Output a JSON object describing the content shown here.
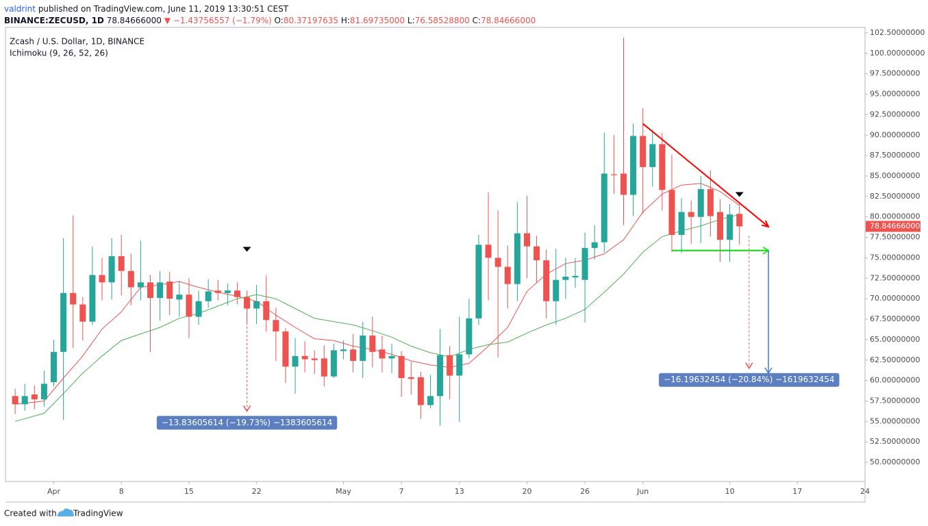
{
  "header": {
    "author": "valdrint",
    "published": "published on TradingView.com, June 11, 2019 13:30:51 CEST",
    "symbol": "BINANCE:ZECUSD, 1D",
    "price": "78.84666000",
    "arrow": "▼",
    "change": "−1.43756557 (−1.79%)",
    "ohlc": [
      {
        "label": "O:",
        "value": "80.37197635"
      },
      {
        "label": "H:",
        "value": "81.69735000"
      },
      {
        "label": "L:",
        "value": "76.58528800"
      },
      {
        "label": "C:",
        "value": "78.84666000"
      }
    ]
  },
  "legend": {
    "title": "Zcash / U.S. Dollar, 1D, BINANCE",
    "indicator": "Ichimoku (9, 26, 52, 26)"
  },
  "footer": {
    "created": "Created with",
    "brand": "TradingView"
  },
  "chart_data": {
    "type": "candlestick",
    "up_color": "#26a69a",
    "down_color": "#ef5350",
    "grid": false,
    "xlim": [
      "03-27",
      "06-24"
    ],
    "ylim": [
      47.66,
      103.17
    ],
    "xticks": [
      {
        "value": "04-01",
        "label": "Apr"
      },
      {
        "value": "04-08",
        "label": "8"
      },
      {
        "value": "04-15",
        "label": "15"
      },
      {
        "value": "04-22",
        "label": "22"
      },
      {
        "value": "05-01",
        "label": "May"
      },
      {
        "value": "05-07",
        "label": "7"
      },
      {
        "value": "05-13",
        "label": "13"
      },
      {
        "value": "05-20",
        "label": "20"
      },
      {
        "value": "05-26",
        "label": "26"
      },
      {
        "value": "06-01",
        "label": "Jun"
      },
      {
        "value": "06-10",
        "label": "10"
      },
      {
        "value": "06-17",
        "label": "17"
      },
      {
        "value": "06-24",
        "label": "24"
      }
    ],
    "yticks": [
      {
        "value": 50,
        "label": "50.00000000"
      },
      {
        "value": 52.5,
        "label": "52.50000000"
      },
      {
        "value": 55,
        "label": "55.00000000"
      },
      {
        "value": 57.5,
        "label": "57.50000000"
      },
      {
        "value": 60,
        "label": "60.00000000"
      },
      {
        "value": 62.5,
        "label": "62.50000000"
      },
      {
        "value": 65,
        "label": "65.00000000"
      },
      {
        "value": 67.5,
        "label": "67.50000000"
      },
      {
        "value": 70,
        "label": "70.00000000"
      },
      {
        "value": 72.5,
        "label": "72.50000000"
      },
      {
        "value": 75,
        "label": "75.00000000"
      },
      {
        "value": 77.5,
        "label": "77.50000000"
      },
      {
        "value": 80,
        "label": "80.00000000"
      },
      {
        "value": 82.5,
        "label": "82.50000000"
      },
      {
        "value": 85,
        "label": "85.00000000"
      },
      {
        "value": 87.5,
        "label": "87.50000000"
      },
      {
        "value": 90,
        "label": "90.00000000"
      },
      {
        "value": 92.5,
        "label": "92.50000000"
      },
      {
        "value": 95,
        "label": "95.00000000"
      },
      {
        "value": 97.5,
        "label": "97.50000000"
      },
      {
        "value": 100,
        "label": "100.00000000"
      },
      {
        "value": 102.5,
        "label": "102.50000000"
      }
    ],
    "candles": {
      "x": [
        "03-28",
        "03-29",
        "03-30",
        "03-31",
        "04-01",
        "04-02",
        "04-03",
        "04-04",
        "04-05",
        "04-06",
        "04-07",
        "04-08",
        "04-09",
        "04-10",
        "04-11",
        "04-12",
        "04-13",
        "04-14",
        "04-15",
        "04-16",
        "04-17",
        "04-18",
        "04-19",
        "04-20",
        "04-21",
        "04-22",
        "04-23",
        "04-24",
        "04-25",
        "04-26",
        "04-27",
        "04-28",
        "04-29",
        "04-30",
        "05-01",
        "05-02",
        "05-03",
        "05-04",
        "05-05",
        "05-06",
        "05-07",
        "05-08",
        "05-09",
        "05-10",
        "05-11",
        "05-12",
        "05-13",
        "05-14",
        "05-15",
        "05-16",
        "05-17",
        "05-18",
        "05-19",
        "05-20",
        "05-21",
        "05-22",
        "05-23",
        "05-24",
        "05-25",
        "05-26",
        "05-27",
        "05-28",
        "05-29",
        "05-30",
        "05-31",
        "06-01",
        "06-02",
        "06-03",
        "06-04",
        "06-05",
        "06-06",
        "06-07",
        "06-08",
        "06-09",
        "06-10",
        "06-11"
      ],
      "open": [
        58.1,
        57.1,
        58.3,
        57.7,
        59.8,
        63.5,
        70.7,
        69.3,
        67.2,
        72.9,
        72.0,
        75.2,
        73.4,
        71.4,
        72.0,
        70.1,
        72.1,
        69.9,
        70.5,
        67.8,
        69.7,
        71.0,
        70.7,
        71.0,
        70.2,
        68.8,
        69.7,
        67.4,
        66.0,
        61.7,
        63.0,
        62.7,
        62.7,
        60.5,
        63.6,
        63.8,
        62.4,
        65.5,
        63.8,
        62.7,
        63.0,
        60.4,
        60.4,
        57.0,
        58.1,
        63.1,
        60.6,
        63.2,
        67.6,
        76.6,
        75.0,
        73.9,
        71.8,
        78.0,
        76.4,
        74.7,
        69.7,
        72.3,
        72.6,
        72.3,
        76.2,
        76.9,
        85.2,
        85.3,
        82.7,
        89.9,
        86.1,
        88.9,
        83.3,
        77.8,
        80.6,
        80.0,
        83.4,
        80.6,
        77.2,
        80.37197635
      ],
      "high": [
        59.0,
        59.6,
        59.4,
        61.2,
        65.0,
        77.4,
        80.2,
        70.2,
        76.4,
        75.0,
        77.4,
        77.8,
        75.5,
        77.1,
        72.9,
        73.4,
        73.3,
        72.2,
        72.5,
        71.0,
        72.4,
        72.3,
        71.9,
        72.0,
        71.0,
        71.7,
        72.8,
        68.9,
        66.4,
        65.2,
        64.8,
        63.7,
        64.3,
        64.5,
        64.9,
        65.7,
        67.2,
        67.8,
        65.5,
        64.5,
        63.6,
        62.3,
        61.1,
        60.7,
        66.3,
        64.2,
        67.8,
        70.0,
        77.8,
        83.0,
        80.8,
        76.5,
        81.8,
        82.6,
        77.7,
        76.0,
        76.1,
        75.0,
        75.0,
        78.1,
        79.0,
        90.3,
        90.0,
        101.9,
        91.4,
        93.3,
        90.7,
        90.3,
        87.6,
        82.3,
        82.0,
        85.0,
        85.7,
        82.2,
        81.6,
        81.69735
      ],
      "low": [
        55.9,
        56.3,
        56.5,
        56.8,
        59.3,
        55.2,
        64.0,
        64.9,
        66.8,
        69.8,
        69.9,
        70.4,
        69.2,
        69.8,
        63.5,
        67.3,
        68.0,
        67.8,
        65.2,
        66.8,
        68.9,
        69.8,
        69.2,
        69.3,
        66.9,
        66.9,
        66.0,
        62.4,
        59.7,
        58.4,
        61.0,
        60.8,
        59.3,
        60.3,
        62.6,
        61.0,
        60.3,
        61.6,
        61.0,
        60.9,
        58.0,
        58.3,
        55.3,
        56.6,
        54.5,
        57.7,
        54.9,
        62.7,
        66.8,
        69.8,
        62.8,
        68.8,
        69.7,
        72.5,
        72.0,
        67.6,
        66.8,
        70.0,
        71.3,
        67.1,
        74.8,
        75.7,
        82.8,
        79.0,
        80.1,
        80.4,
        83.7,
        80.8,
        75.7,
        75.6,
        76.7,
        76.8,
        77.6,
        74.5,
        74.5,
        76.585288
      ],
      "close": [
        57.1,
        58.1,
        57.7,
        59.6,
        63.5,
        70.7,
        69.3,
        67.2,
        72.9,
        72.0,
        75.2,
        73.4,
        71.4,
        72.0,
        70.1,
        72.0,
        70.0,
        70.5,
        67.8,
        69.7,
        70.9,
        70.7,
        71.0,
        70.2,
        68.8,
        69.7,
        67.4,
        66.0,
        61.7,
        63.0,
        62.6,
        62.5,
        60.5,
        63.7,
        63.8,
        62.4,
        65.5,
        63.5,
        62.7,
        63.0,
        60.3,
        60.2,
        57.0,
        58.1,
        63.1,
        60.6,
        63.2,
        67.6,
        76.6,
        75.0,
        73.9,
        71.8,
        78.0,
        76.4,
        74.7,
        69.7,
        72.3,
        72.7,
        72.8,
        76.2,
        76.9,
        85.3,
        85.1,
        82.7,
        89.9,
        86.1,
        88.9,
        83.3,
        77.8,
        80.6,
        80.0,
        83.4,
        80.1,
        77.2,
        80.3,
        78.84666
      ]
    },
    "lines": [
      {
        "color": "#ef5350",
        "x": [
          "03-28",
          "03-31",
          "04-02",
          "04-04",
          "04-06",
          "04-08",
          "04-10",
          "04-12",
          "04-14",
          "04-16",
          "04-18",
          "04-20",
          "04-22",
          "04-24",
          "04-26",
          "04-28",
          "04-30",
          "05-02",
          "05-04",
          "05-06",
          "05-08",
          "05-10",
          "05-12",
          "05-14",
          "05-16",
          "05-18",
          "05-20",
          "05-22",
          "05-24",
          "05-26",
          "05-28",
          "05-30",
          "06-01",
          "06-03",
          "06-05",
          "06-07",
          "06-09",
          "06-11"
        ],
        "values": [
          57.1,
          57.5,
          60.3,
          63.0,
          66.3,
          68.4,
          71.4,
          71.7,
          72.1,
          71.4,
          70.8,
          70.3,
          69.7,
          68.0,
          66.5,
          65.1,
          64.9,
          64.2,
          63.8,
          63.2,
          62.4,
          61.9,
          61.6,
          62.1,
          64.2,
          66.5,
          70.9,
          73.0,
          74.3,
          74.7,
          75.5,
          77.2,
          80.6,
          82.8,
          83.9,
          84.1,
          83.1,
          81.4
        ]
      },
      {
        "color": "#4caf50",
        "x": [
          "03-28",
          "03-31",
          "04-02",
          "04-04",
          "04-06",
          "04-08",
          "04-10",
          "04-12",
          "04-14",
          "04-16",
          "04-18",
          "04-20",
          "04-22",
          "04-24",
          "04-26",
          "04-28",
          "04-30",
          "05-02",
          "05-04",
          "05-06",
          "05-08",
          "05-10",
          "05-12",
          "05-14",
          "05-16",
          "05-18",
          "05-20",
          "05-22",
          "05-24",
          "05-26",
          "05-28",
          "05-30",
          "06-01",
          "06-03",
          "06-05",
          "06-07",
          "06-09",
          "06-11"
        ],
        "values": [
          55.0,
          56.0,
          58.4,
          60.9,
          63.0,
          64.9,
          65.7,
          66.5,
          67.6,
          68.2,
          69.1,
          70.0,
          70.5,
          70.0,
          68.8,
          67.6,
          67.2,
          66.8,
          66.1,
          65.3,
          64.2,
          63.4,
          62.9,
          63.8,
          64.4,
          64.7,
          65.8,
          66.8,
          67.6,
          68.7,
          70.8,
          73.0,
          75.7,
          77.6,
          78.3,
          78.9,
          79.7,
          80.3
        ]
      }
    ],
    "trendline": {
      "color": "#ff0000",
      "from": {
        "x": "06-01",
        "y": 91.4
      },
      "to": {
        "x": "06-14",
        "y": 78.8
      }
    },
    "support": {
      "color": "#00e600",
      "from": {
        "x": "06-04",
        "y": 75.9
      },
      "to": {
        "x": "06-14",
        "y": 75.9
      }
    },
    "target_arrow": {
      "color": "#3c78d8",
      "x": "06-14",
      "from": 75.9,
      "to": 60.9
    },
    "measures": [
      {
        "x": "04-21",
        "from": 70.1,
        "to": 56.26,
        "label": "−13.83605614 (−19.73%) −1383605614"
      },
      {
        "x": "06-12",
        "from": 77.7,
        "to": 61.5,
        "label": "−16.19632454 (−20.84%) −1619632454"
      }
    ],
    "markers": [
      {
        "x": "04-21",
        "y": 76.0
      },
      {
        "x": "06-11",
        "y": 82.7
      }
    ],
    "last_price": {
      "value": 78.84666,
      "label": "78.84666000",
      "color": "#ef5350"
    }
  }
}
